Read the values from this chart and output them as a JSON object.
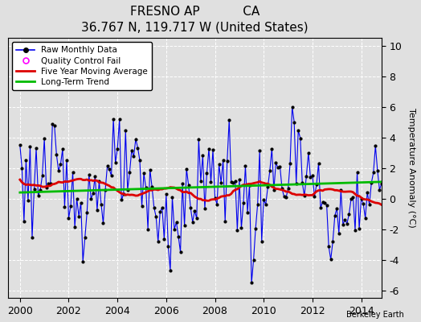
{
  "title": "FRESNO AP           CA",
  "subtitle": "36.767 N, 119.717 W (United States)",
  "ylabel": "Temperature Anomaly (°C)",
  "watermark": "Berkeley Earth",
  "xlim": [
    1999.5,
    2014.83
  ],
  "ylim": [
    -6.5,
    10.5
  ],
  "yticks": [
    -6,
    -4,
    -2,
    0,
    2,
    4,
    6,
    8,
    10
  ],
  "xticks": [
    2000,
    2002,
    2004,
    2006,
    2008,
    2010,
    2012,
    2014
  ],
  "raw_color": "#0000EE",
  "ma_color": "#DD0000",
  "trend_color": "#00BB00",
  "qc_color": "#FF00FF",
  "bg_color": "#E0E0E0",
  "title_fontsize": 11,
  "subtitle_fontsize": 9,
  "tick_fontsize": 9,
  "ylabel_fontsize": 8
}
